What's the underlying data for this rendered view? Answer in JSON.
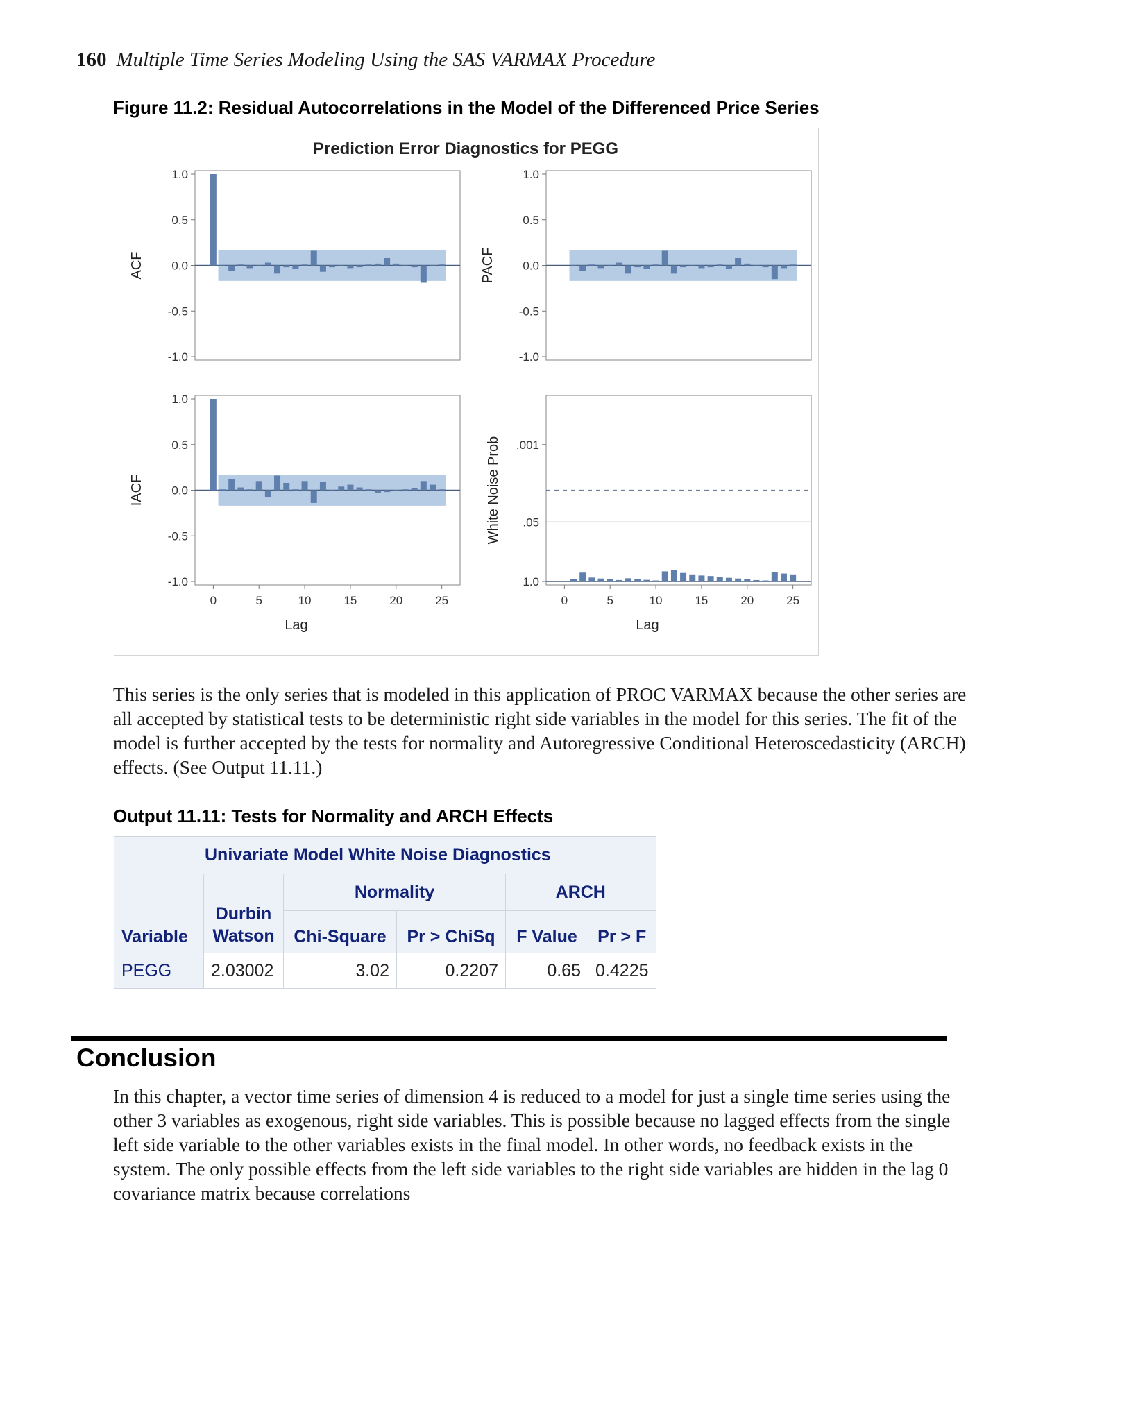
{
  "header": {
    "page_number": "160",
    "running_title": "Multiple Time Series Modeling Using the SAS VARMAX Procedure"
  },
  "figure": {
    "caption": "Figure 11.2: Residual Autocorrelations in the Model of the Differenced Price Series",
    "title": "Prediction Error Diagnostics for PEGG",
    "xlabel": "Lag",
    "x_ticks": [
      "0",
      "5",
      "10",
      "15",
      "20",
      "25"
    ],
    "corr_ticks": [
      "1.0",
      "0.5",
      "0.0",
      "-0.5",
      "-1.0"
    ],
    "prob_ticks": [
      ".001",
      ".05",
      "1.0"
    ],
    "band_color": "#b6cbe4",
    "bar_color": "#5f7fad"
  },
  "chart_data": [
    {
      "type": "bar",
      "panel": "ACF",
      "ylabel": "ACF",
      "xlabel": "",
      "ylim": [
        -1,
        1
      ],
      "x": [
        0,
        1,
        2,
        3,
        4,
        5,
        6,
        7,
        8,
        9,
        10,
        11,
        12,
        13,
        14,
        15,
        16,
        17,
        18,
        19,
        20,
        21,
        22,
        23,
        24,
        25
      ],
      "values": [
        1.0,
        -0.01,
        -0.06,
        0.01,
        -0.03,
        -0.01,
        0.03,
        -0.09,
        -0.02,
        -0.04,
        0.01,
        0.16,
        -0.07,
        -0.02,
        -0.01,
        -0.03,
        -0.02,
        0.01,
        0.02,
        0.08,
        0.02,
        -0.01,
        -0.02,
        -0.19,
        -0.01,
        0.01
      ],
      "confidence_band": 0.17
    },
    {
      "type": "bar",
      "panel": "PACF",
      "ylabel": "PACF",
      "xlabel": "",
      "ylim": [
        -1,
        1
      ],
      "x": [
        1,
        2,
        3,
        4,
        5,
        6,
        7,
        8,
        9,
        10,
        11,
        12,
        13,
        14,
        15,
        16,
        17,
        18,
        19,
        20,
        21,
        22,
        23,
        24,
        25
      ],
      "values": [
        -0.01,
        -0.06,
        0.01,
        -0.03,
        -0.01,
        0.03,
        -0.09,
        -0.02,
        -0.04,
        0.01,
        0.16,
        -0.09,
        -0.02,
        -0.01,
        -0.03,
        -0.02,
        0.01,
        -0.04,
        0.08,
        0.02,
        -0.01,
        -0.02,
        -0.15,
        -0.03,
        0.01
      ],
      "confidence_band": 0.17
    },
    {
      "type": "bar",
      "panel": "IACF",
      "ylabel": "IACF",
      "xlabel": "Lag",
      "ylim": [
        -1,
        1
      ],
      "x": [
        0,
        1,
        2,
        3,
        4,
        5,
        6,
        7,
        8,
        9,
        10,
        11,
        12,
        13,
        14,
        15,
        16,
        17,
        18,
        19,
        20,
        21,
        22,
        23,
        24,
        25
      ],
      "values": [
        1.0,
        0.01,
        0.12,
        0.03,
        0.01,
        0.1,
        -0.08,
        0.16,
        0.08,
        0.01,
        0.1,
        -0.14,
        0.09,
        -0.01,
        0.04,
        0.06,
        0.03,
        0.01,
        -0.03,
        -0.02,
        -0.01,
        0.01,
        0.02,
        0.1,
        0.06,
        0.01
      ],
      "confidence_band": 0.17
    },
    {
      "type": "bar",
      "panel": "White Noise Prob",
      "ylabel": "White Noise Prob",
      "xlabel": "Lag",
      "yscale": "log",
      "ylim": [
        1.0,
        0.0001
      ],
      "x": [
        1,
        2,
        3,
        4,
        5,
        6,
        7,
        8,
        9,
        10,
        11,
        12,
        13,
        14,
        15,
        16,
        17,
        18,
        19,
        20,
        21,
        22,
        23,
        24,
        25
      ],
      "values": [
        0.87,
        0.64,
        0.82,
        0.86,
        0.9,
        0.93,
        0.85,
        0.9,
        0.92,
        0.95,
        0.6,
        0.57,
        0.65,
        0.7,
        0.74,
        0.76,
        0.8,
        0.83,
        0.86,
        0.89,
        0.93,
        0.95,
        0.63,
        0.67,
        0.7
      ],
      "reference_lines": [
        0.05,
        0.01
      ]
    }
  ],
  "paragraph1": "This series is the only series that is modeled in this application of PROC VARMAX because the other series are all accepted by statistical tests to be deterministic right side variables in the model for this series. The fit of the model is further accepted by the tests for normality and Autoregressive Conditional Heteroscedasticity (ARCH) effects. (See Output 11.11.)",
  "output": {
    "caption": "Output 11.11: Tests for Normality and ARCH Effects",
    "table_title": "Univariate Model White Noise Diagnostics",
    "group_normality": "Normality",
    "group_arch": "ARCH",
    "col_variable": "Variable",
    "col_durbin_1": "Durbin",
    "col_durbin_2": "Watson",
    "col_chisq": "Chi-Square",
    "col_pr_chisq": "Pr > ChiSq",
    "col_fvalue": "F Value",
    "col_pr_f": "Pr > F",
    "row": {
      "variable": "PEGG",
      "durbin_watson": "2.03002",
      "chi_square": "3.02",
      "pr_chisq": "0.2207",
      "f_value": "0.65",
      "pr_f": "0.4225"
    }
  },
  "section_heading": "Conclusion",
  "paragraph2": "In this chapter, a vector time series of dimension 4 is reduced to a model for just a single time series using the other 3 variables as exogenous, right side variables. This is possible because no lagged effects from the single left side variable to the other variables exists in the final model. In other words, no feedback exists in the system. The only possible effects from the left side variables to the right side variables are hidden in the lag 0 covariance matrix because correlations"
}
